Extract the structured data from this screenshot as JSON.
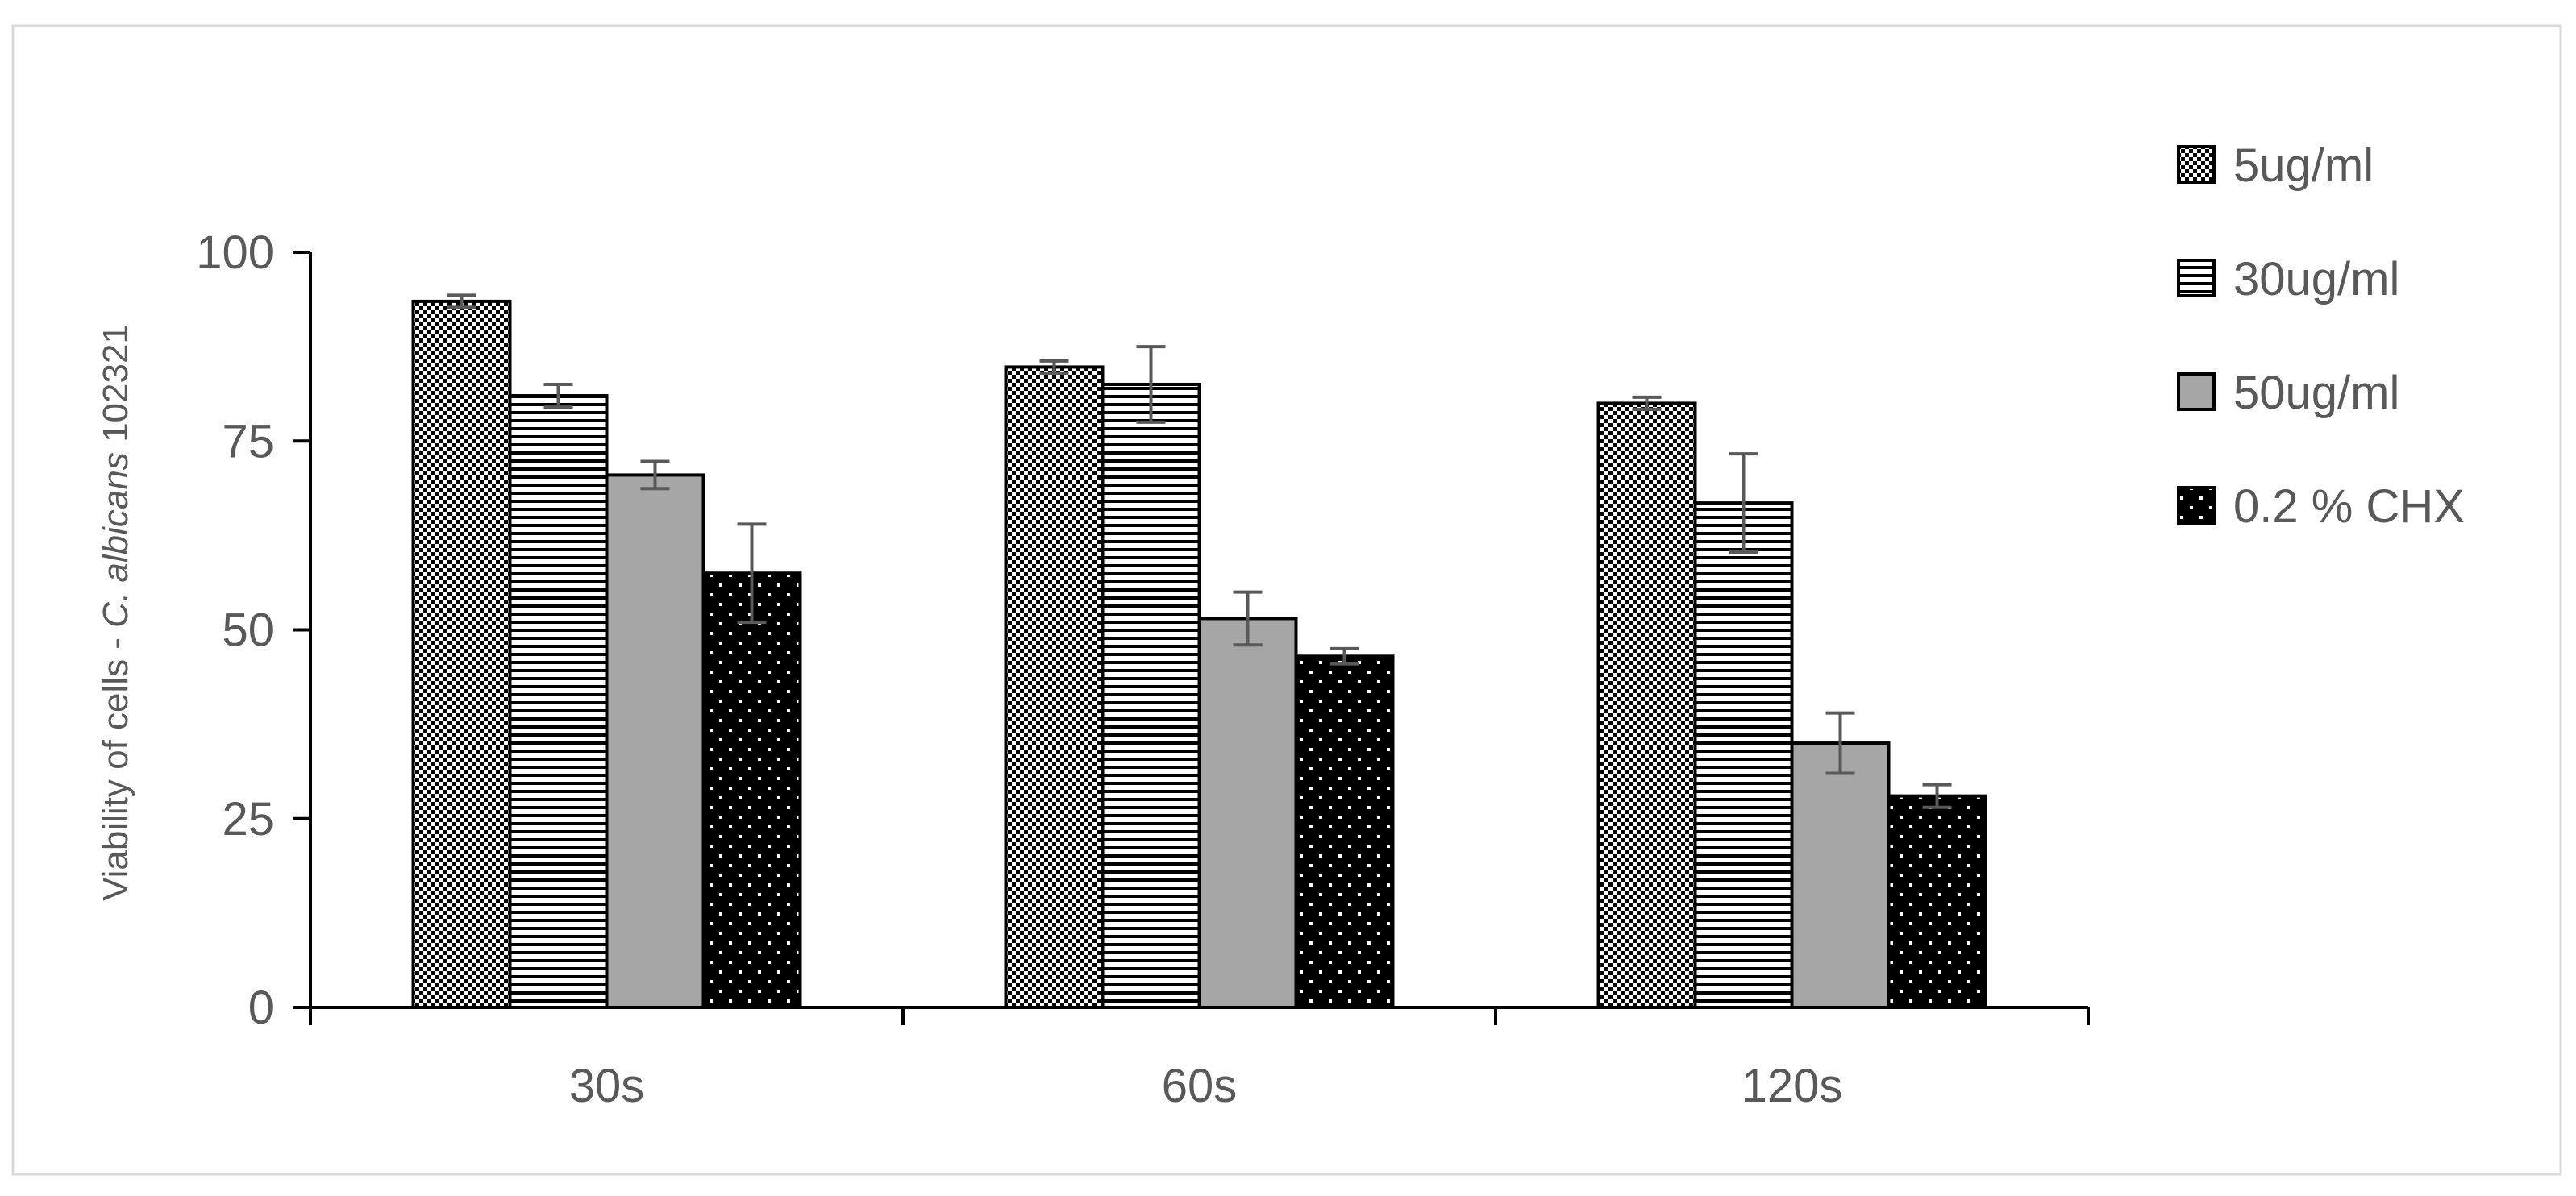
{
  "chart_data": {
    "type": "bar",
    "title": "",
    "xlabel": "",
    "ylabel": {
      "prefix": "Viability of cells - ",
      "italic": "C. albicans",
      "suffix": " 102321"
    },
    "ylim": [
      0,
      100
    ],
    "yticks": [
      "0",
      "25",
      "50",
      "75",
      "100"
    ],
    "ytick_values": [
      0,
      25,
      50,
      75,
      100
    ],
    "grid": false,
    "legend_position": "right",
    "categories": [
      "30s",
      "60s",
      "120s"
    ],
    "series": [
      {
        "name": "5ug/ml",
        "pattern": "checker",
        "values": [
          93.5,
          84.8,
          80.0
        ],
        "errors": [
          0.8,
          0.8,
          0.8
        ]
      },
      {
        "name": "30ug/ml",
        "pattern": "horizontal",
        "values": [
          81.0,
          82.5,
          66.8
        ],
        "errors": [
          1.5,
          5.0,
          6.5
        ]
      },
      {
        "name": "50ug/ml",
        "pattern": "gray",
        "values": [
          70.5,
          51.5,
          35.0
        ],
        "errors": [
          1.8,
          3.5,
          4.0
        ]
      },
      {
        "name": "0.2 % CHX",
        "pattern": "dots",
        "values": [
          57.5,
          46.5,
          28.0
        ],
        "errors": [
          6.5,
          1.0,
          1.5
        ]
      }
    ]
  },
  "colors": {
    "axis": "#000000",
    "text": "#595959",
    "error_bar": "#595959",
    "bar_outline": "#000000",
    "gray_fill": "#a6a6a6",
    "frame": "#d9d9d9"
  }
}
